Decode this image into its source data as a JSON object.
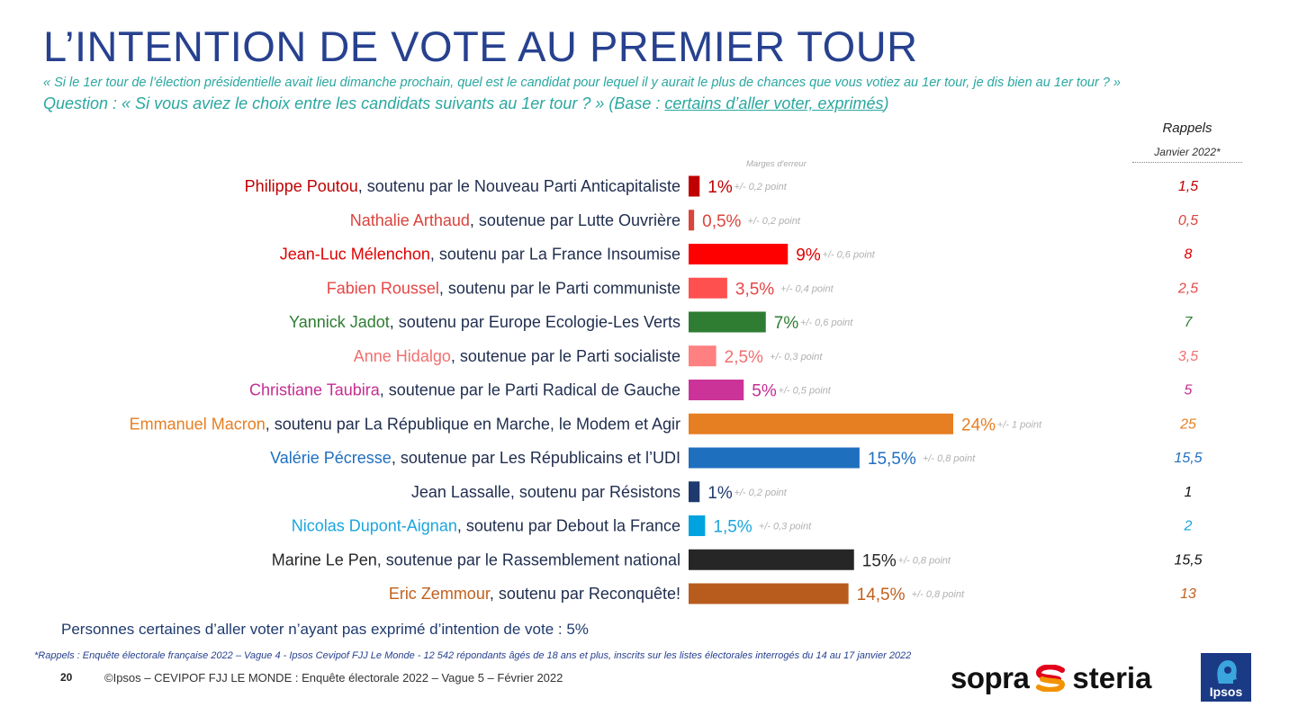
{
  "header": {
    "title": "L’INTENTION DE VOTE AU PREMIER TOUR",
    "subtitle1": "« Si le 1er tour de l’élection présidentielle avait lieu dimanche prochain, quel est le candidat pour lequel il y aurait le plus de chances que vous votiez au 1er tour, je dis bien au 1er tour ? »",
    "subtitle2_prefix": "Question : « Si vous aviez le choix entre les candidats suivants au 1er tour ? » (Base : ",
    "subtitle2_base": "certains d’aller voter, exprimés",
    "subtitle2_suffix": ")"
  },
  "column_headers": {
    "rappels": "Rappels",
    "rappels_period": "Janvier 2022*",
    "margin": "Marges d'erreur"
  },
  "chart_data": {
    "type": "bar",
    "orientation": "horizontal",
    "title": "L’INTENTION DE VOTE AU PREMIER TOUR",
    "unit": "%",
    "xlim": [
      0,
      30
    ],
    "categories": [
      {
        "name": "Philippe Poutou",
        "rest": ", soutenu par le Nouveau Parti Anticapitaliste",
        "value": 1,
        "value_label": "1%",
        "error": "+/- 0,2 point",
        "recall": "1,5",
        "recall_value": 1.5,
        "color": "#c00000"
      },
      {
        "name": "Nathalie Arthaud",
        "rest": ", soutenue par Lutte Ouvrière",
        "value": 0.5,
        "value_label": "0,5%",
        "error": "+/- 0,2 point",
        "recall": "0,5",
        "recall_value": 0.5,
        "color": "#d9443c"
      },
      {
        "name": "Jean-Luc Mélenchon",
        "rest": ", soutenu par La France Insoumise",
        "value": 9,
        "value_label": "9%",
        "error": "+/- 0,6 point",
        "recall": "8",
        "recall_value": 8,
        "color": "#ff0000",
        "text_color": "#e00000"
      },
      {
        "name": "Fabien Roussel",
        "rest": ", soutenu par le Parti communiste",
        "value": 3.5,
        "value_label": "3,5%",
        "error": "+/- 0,4 point",
        "recall": "2,5",
        "recall_value": 2.5,
        "color": "#ff5050",
        "text_color": "#e64646"
      },
      {
        "name": "Yannick Jadot",
        "rest": ", soutenu par Europe Ecologie-Les Verts",
        "value": 7,
        "value_label": "7%",
        "error": "+/- 0,6 point",
        "recall": "7",
        "recall_value": 7,
        "color": "#2e7d32"
      },
      {
        "name": "Anne Hidalgo",
        "rest": ", soutenue par le Parti socialiste",
        "value": 2.5,
        "value_label": "2,5%",
        "error": "+/- 0,3 point",
        "recall": "3,5",
        "recall_value": 3.5,
        "color": "#ff8080",
        "text_color": "#f07070"
      },
      {
        "name": "Christiane Taubira",
        "rest": ", soutenue par le Parti Radical de Gauche",
        "value": 5,
        "value_label": "5%",
        "error": "+/- 0,5 point",
        "recall": "5",
        "recall_value": 5,
        "color": "#cc3399",
        "text_color": "#c42d92"
      },
      {
        "name": "Emmanuel Macron",
        "rest": ", soutenu par La République en Marche, le Modem et Agir",
        "value": 24,
        "value_label": "24%",
        "error": "+/- 1 point",
        "recall": "25",
        "recall_value": 25,
        "color": "#e67e22"
      },
      {
        "name": "Valérie Pécresse",
        "rest": ", soutenue par Les Républicains et l’UDI",
        "value": 15.5,
        "value_label": "15,5%",
        "error": "+/- 0,8 point",
        "recall": "15,5",
        "recall_value": 15.5,
        "color": "#1f6fbf"
      },
      {
        "name": "Jean Lassalle",
        "rest": ", soutenu par Résistons",
        "value": 1,
        "value_label": "1%",
        "error": "+/- 0,2 point",
        "recall": "1",
        "recall_value": 1,
        "color": "#1f3a6e",
        "name_color": "#1f2d4e"
      },
      {
        "name": "Nicolas Dupont-Aignan",
        "rest": ", soutenu par Debout la France",
        "value": 1.5,
        "value_label": "1,5%",
        "error": "+/- 0,3 point",
        "recall": "2",
        "recall_value": 2,
        "color": "#00a3e0",
        "text_color": "#1aa5dd"
      },
      {
        "name": "Marine Le Pen",
        "rest": ", soutenue par le Rassemblement national",
        "value": 15,
        "value_label": "15%",
        "error": "+/- 0,8 point",
        "recall": "15,5",
        "recall_value": 15.5,
        "color": "#262626"
      },
      {
        "name": "Eric Zemmour",
        "rest": ", soutenu par Reconquête!",
        "value": 14.5,
        "value_label": "14,5%",
        "error": "+/- 0,8 point",
        "recall": "13",
        "recall_value": 13,
        "color": "#b85c1e",
        "text_color": "#c0611e"
      }
    ]
  },
  "footer": {
    "base_note": "Personnes certaines d’aller voter n’ayant pas exprimé d’intention de vote : 5%",
    "footnote": "*Rappels : Enquête électorale française 2022 – Vague 4 - Ipsos Cevipof FJJ Le Monde - 12 542 répondants âgés de 18 ans et plus, inscrits sur les listes électorales interrogés du 14 au 17 janvier 2022",
    "page_number": "20",
    "copyright": "©Ipsos – CEVIPOF FJJ LE MONDE : Enquête électorale 2022 – Vague 5 – Février 2022",
    "sopra_left": "sopra",
    "sopra_right": "steria",
    "ipsos": "Ipsos"
  },
  "colors": {
    "title": "#27418f",
    "subtitle": "#2aa7a0",
    "neutral_text": "#1f2d4e",
    "recall_neutral": "#111111"
  }
}
